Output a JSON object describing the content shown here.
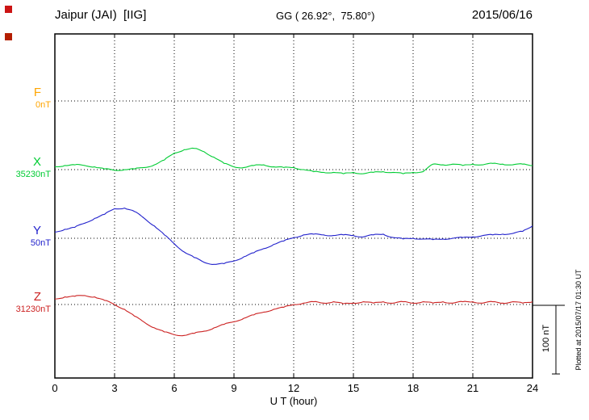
{
  "header": {
    "station": "Jaipur (JAI)  [IIG]",
    "coords": "GG ( 26.92°,  75.80°)",
    "date": "2015/06/16"
  },
  "axis": {
    "xlabel": "U T (hour)",
    "x_ticks": [
      0,
      3,
      6,
      9,
      12,
      15,
      18,
      21,
      24
    ]
  },
  "scale_bar": {
    "label": "100 nT"
  },
  "footer_note": "Plotted at 2015/07/17 01:30 UT",
  "chart_data": {
    "type": "line",
    "title": "Jaipur (JAI) [IIG] magnetogram — 2015/06/16",
    "xlabel": "U T (hour)",
    "x_range": [
      0,
      24
    ],
    "x_ticks": [
      0,
      3,
      6,
      9,
      12,
      15,
      18,
      21,
      24
    ],
    "step_hours": 0.5,
    "scale_label": "100 nT",
    "scale_nT": 100,
    "grid": "dotted",
    "series": [
      {
        "name": "F",
        "baseline_label": "0nT",
        "color": "#ffa500",
        "values": []
      },
      {
        "name": "X",
        "baseline_label": "35230nT",
        "color": "#00cc33",
        "values": [
          4,
          6,
          7,
          6,
          4,
          1,
          -1,
          0,
          1,
          3,
          7,
          14,
          24,
          29,
          31,
          26,
          18,
          9,
          4,
          3,
          6,
          7,
          4,
          3,
          3,
          0,
          -3,
          -4,
          -4,
          -6,
          -4,
          -6,
          -4,
          -3,
          -4,
          -6,
          -4,
          -3,
          8,
          7,
          8,
          6,
          8,
          7,
          9,
          8,
          7,
          8,
          6
        ]
      },
      {
        "name": "Y",
        "baseline_label": "50nT",
        "color": "#2222cc",
        "values": [
          9,
          13,
          16,
          22,
          29,
          35,
          43,
          44,
          39,
          29,
          18,
          5,
          -8,
          -20,
          -28,
          -35,
          -38,
          -37,
          -33,
          -27,
          -21,
          -15,
          -9,
          -4,
          1,
          5,
          6,
          5,
          4,
          5,
          4,
          2,
          5,
          6,
          1,
          -1,
          0,
          -1,
          -2,
          -1,
          0,
          1,
          2,
          4,
          5,
          6,
          7,
          10,
          18
        ]
      },
      {
        "name": "Z",
        "baseline_label": "31230nT",
        "color": "#cc2222",
        "values": [
          8,
          11,
          12,
          13,
          11,
          6,
          0,
          -7,
          -17,
          -26,
          -34,
          -40,
          -44,
          -45,
          -42,
          -39,
          -34,
          -29,
          -25,
          -20,
          -15,
          -11,
          -7,
          -4,
          0,
          2,
          4,
          2,
          4,
          1,
          2,
          4,
          2,
          4,
          2,
          4,
          2,
          4,
          2,
          4,
          2,
          4,
          4,
          2,
          4,
          2,
          4,
          2,
          4
        ]
      }
    ]
  }
}
